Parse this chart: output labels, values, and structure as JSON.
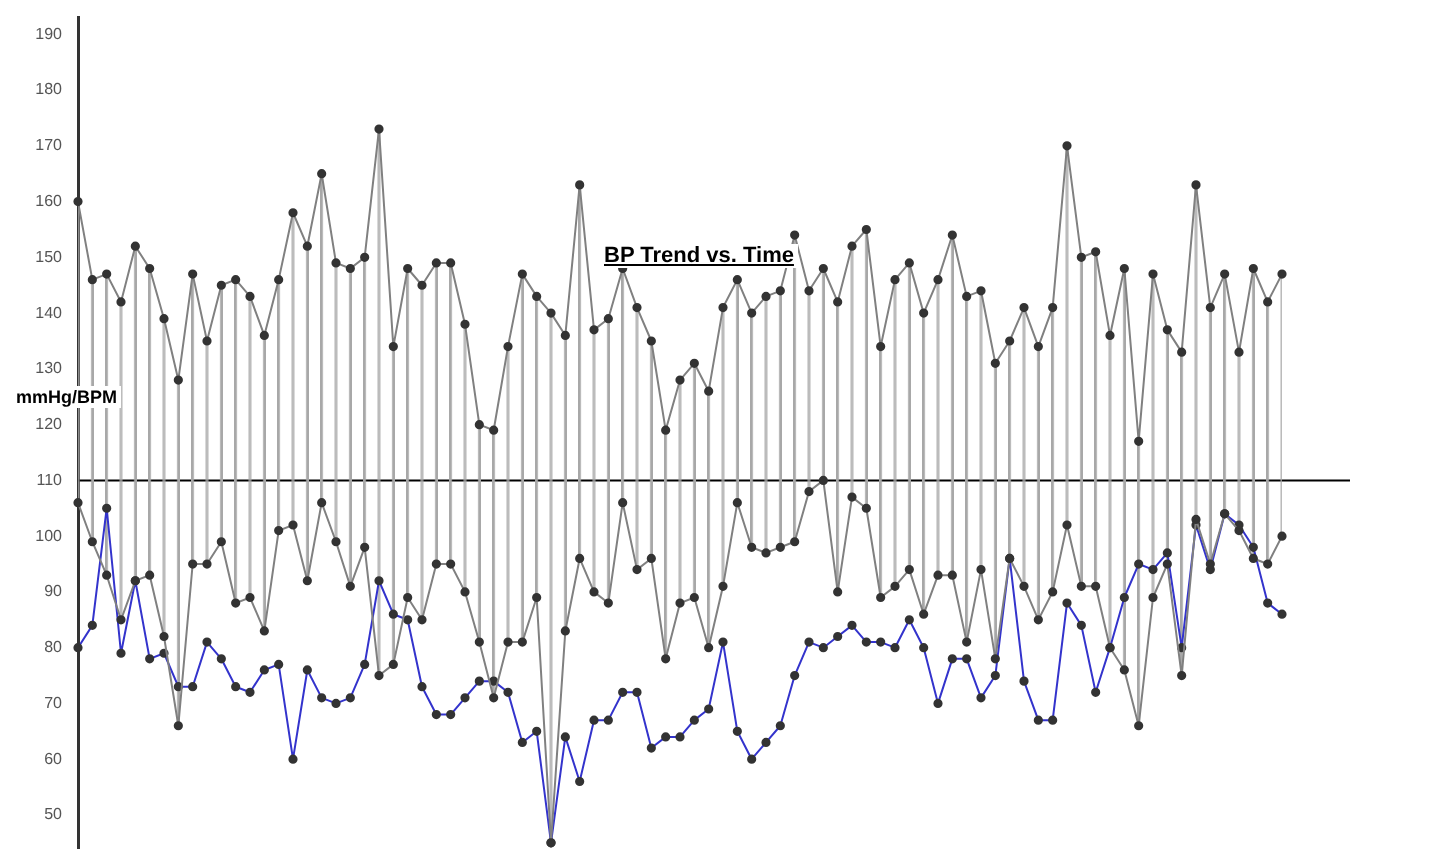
{
  "chart_data": {
    "type": "line",
    "title": "BP Trend vs. Time",
    "ylabel": "mmHg/BPM",
    "categories": [
      null,
      null,
      null,
      null,
      null,
      null,
      null,
      null,
      null,
      null,
      null,
      null,
      null,
      null,
      null,
      null,
      null,
      null,
      null,
      null,
      null,
      null,
      null,
      null,
      null,
      null,
      null,
      null,
      null,
      null,
      null,
      null,
      null,
      null,
      null,
      null,
      null,
      null,
      null,
      null,
      null,
      null,
      null,
      null,
      null,
      null,
      null,
      null,
      null,
      null,
      null,
      null,
      null,
      null,
      null,
      null,
      null,
      null,
      null,
      null,
      null,
      null,
      null,
      null,
      null,
      null,
      null,
      null,
      null,
      null,
      null,
      null,
      null,
      null,
      null,
      null,
      null,
      null,
      null,
      null,
      null,
      null,
      null,
      null,
      null
    ],
    "series": [
      {
        "type": "bar",
        "color": "#a8a8a8",
        "base": [
          106,
          99,
          93,
          85,
          92,
          93,
          82,
          66,
          95,
          95,
          99,
          88,
          89,
          83,
          101,
          102,
          92,
          106,
          99,
          91,
          98,
          75,
          77,
          89,
          85,
          95,
          95,
          90,
          81,
          71,
          81,
          81,
          89,
          45,
          83,
          96,
          90,
          88,
          106,
          94,
          96,
          78,
          88,
          89,
          80,
          91,
          106,
          98,
          97,
          98,
          99,
          108,
          110,
          90,
          107,
          105,
          89,
          91,
          94,
          86,
          93,
          93,
          81,
          94,
          78,
          96,
          91,
          85,
          90,
          102,
          91,
          91,
          80,
          76,
          66,
          89,
          95,
          75,
          103,
          95,
          104,
          101,
          96,
          95,
          100
        ],
        "values": [
          54,
          47,
          54,
          57,
          60,
          55,
          57,
          62,
          52,
          40,
          46,
          58,
          54,
          53,
          45,
          56,
          60,
          59,
          50,
          57,
          52,
          98,
          57,
          59,
          60,
          54,
          54,
          48,
          39,
          48,
          53,
          66,
          54,
          95,
          53,
          67,
          47,
          51,
          42,
          47,
          39,
          41,
          40,
          42,
          46,
          50,
          40,
          42,
          46,
          46,
          55,
          36,
          38,
          52,
          45,
          50,
          45,
          55,
          55,
          54,
          53,
          61,
          62,
          50,
          53,
          39,
          50,
          49,
          51,
          68,
          59,
          60,
          56,
          72,
          51,
          58,
          42,
          58,
          60,
          46,
          43,
          32,
          52,
          47,
          47
        ]
      },
      {
        "color": "#808080",
        "values": [
          160,
          146,
          147,
          142,
          152,
          148,
          139,
          128,
          147,
          135,
          145,
          146,
          143,
          136,
          146,
          158,
          152,
          165,
          149,
          148,
          150,
          173,
          134,
          148,
          145,
          149,
          149,
          138,
          120,
          119,
          134,
          147,
          143,
          140,
          136,
          163,
          137,
          139,
          148,
          141,
          135,
          119,
          128,
          131,
          126,
          141,
          146,
          140,
          143,
          144,
          154,
          144,
          148,
          142,
          152,
          155,
          134,
          146,
          149,
          140,
          146,
          154,
          143,
          144,
          131,
          135,
          141,
          134,
          141,
          170,
          150,
          151,
          136,
          148,
          117,
          147,
          137,
          133,
          163,
          141,
          147,
          133,
          148,
          142,
          147
        ]
      },
      {
        "color": "#808080",
        "values": [
          106,
          99,
          93,
          85,
          92,
          93,
          82,
          66,
          95,
          95,
          99,
          88,
          89,
          83,
          101,
          102,
          92,
          106,
          99,
          91,
          98,
          75,
          77,
          89,
          85,
          95,
          95,
          90,
          81,
          71,
          81,
          81,
          89,
          45,
          83,
          96,
          90,
          88,
          106,
          94,
          96,
          78,
          88,
          89,
          80,
          91,
          106,
          98,
          97,
          98,
          99,
          108,
          110,
          90,
          107,
          105,
          89,
          91,
          94,
          86,
          93,
          93,
          81,
          94,
          78,
          96,
          91,
          85,
          90,
          102,
          91,
          91,
          80,
          76,
          66,
          89,
          95,
          75,
          103,
          95,
          104,
          101,
          96,
          95,
          100
        ]
      },
      {
        "color": "#3333cc",
        "values": [
          80,
          84,
          105,
          79,
          92,
          78,
          79,
          73,
          73,
          81,
          78,
          73,
          72,
          76,
          77,
          60,
          76,
          71,
          70,
          71,
          77,
          92,
          86,
          85,
          73,
          68,
          68,
          71,
          74,
          74,
          72,
          63,
          65,
          45,
          64,
          56,
          67,
          67,
          72,
          72,
          62,
          64,
          64,
          67,
          69,
          81,
          65,
          60,
          63,
          66,
          75,
          81,
          80,
          82,
          84,
          81,
          81,
          80,
          85,
          80,
          70,
          78,
          78,
          71,
          75,
          96,
          74,
          67,
          67,
          88,
          84,
          72,
          80,
          89,
          95,
          94,
          97,
          80,
          102,
          94,
          104,
          102,
          98,
          88,
          86
        ]
      }
    ],
    "ylim": [
      44,
      193
    ],
    "yticks": [
      50,
      60,
      70,
      80,
      90,
      100,
      110,
      120,
      130,
      140,
      150,
      160,
      170,
      180,
      190
    ],
    "ref_lines": [
      {
        "axis": "y",
        "value": 110,
        "color": "#000000"
      }
    ],
    "grid": false,
    "legend": false,
    "marker": "circle",
    "line_style": "solid",
    "tick_labels": "y"
  }
}
